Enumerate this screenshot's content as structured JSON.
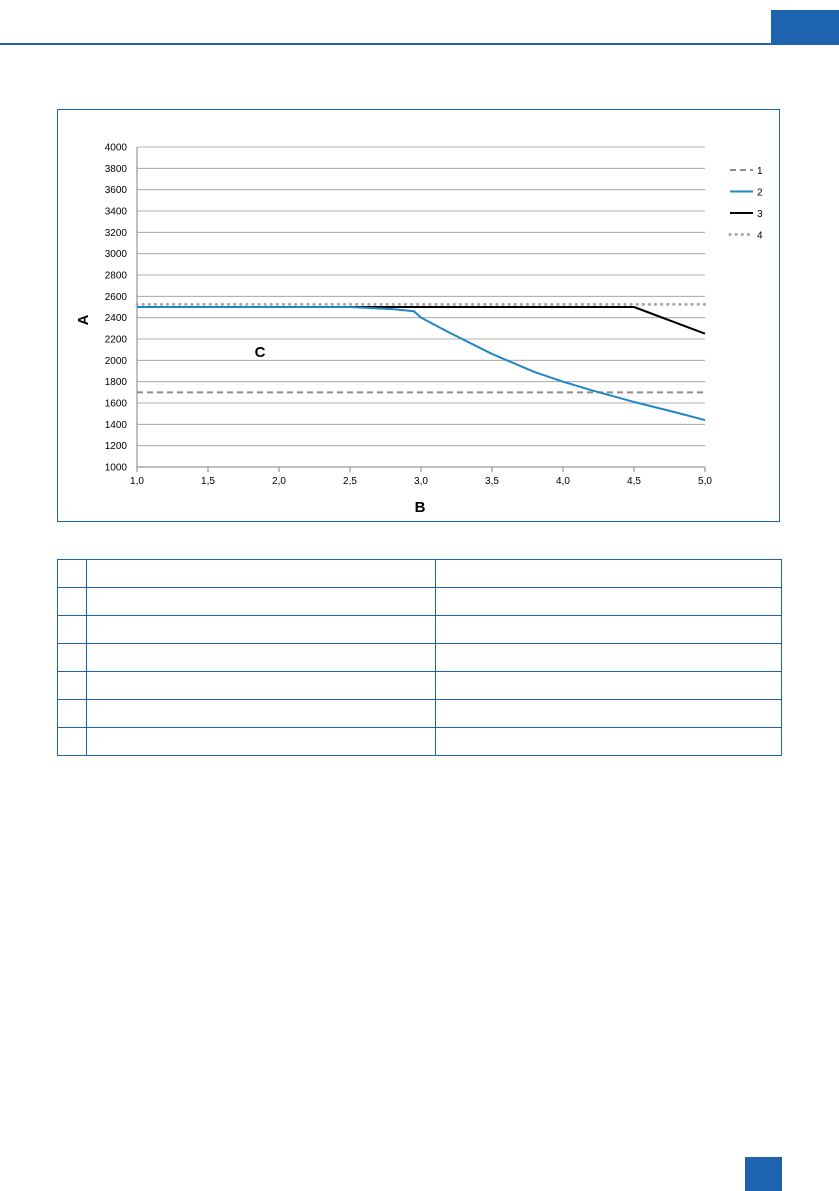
{
  "page": {
    "accent_color": "#1e63b0"
  },
  "chart_data": {
    "type": "line",
    "xlabel": "B",
    "ylabel": "A",
    "annotation": "C",
    "xlim": [
      1.0,
      5.0
    ],
    "ylim": [
      1000,
      4000
    ],
    "xticks": [
      "1,0",
      "1,5",
      "2,0",
      "2,5",
      "3,0",
      "3,5",
      "4,0",
      "4,5",
      "5,0"
    ],
    "yticks": [
      "1000",
      "1200",
      "1400",
      "1600",
      "1800",
      "2000",
      "2200",
      "2400",
      "2600",
      "2800",
      "3000",
      "3200",
      "3400",
      "3600",
      "3800",
      "4000"
    ],
    "grid": true,
    "legend_position": "right",
    "series": [
      {
        "name": "1",
        "style": "dashed",
        "color": "#8c8c8c",
        "x": [
          1.0,
          5.0
        ],
        "y": [
          1700,
          1700
        ]
      },
      {
        "name": "2",
        "style": "solid",
        "color": "#1f87c8",
        "x": [
          1.0,
          2.5,
          2.8,
          2.95,
          3.0,
          3.2,
          3.5,
          3.8,
          4.0,
          4.2,
          4.5,
          4.8,
          5.0
        ],
        "y": [
          2500,
          2500,
          2480,
          2460,
          2400,
          2260,
          2060,
          1890,
          1800,
          1720,
          1610,
          1510,
          1440
        ]
      },
      {
        "name": "3",
        "style": "solid",
        "color": "#000000",
        "x": [
          1.0,
          4.5,
          5.0
        ],
        "y": [
          2500,
          2500,
          2250
        ]
      },
      {
        "name": "4",
        "style": "dotted",
        "color": "#a6a6a6",
        "x": [
          1.0,
          5.0
        ],
        "y": [
          2525,
          2525
        ]
      }
    ]
  },
  "legend_table": {
    "rows": 7
  }
}
